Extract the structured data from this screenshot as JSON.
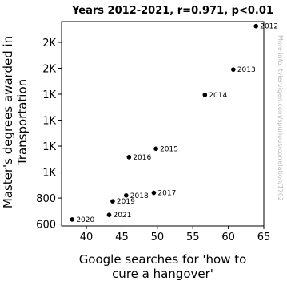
{
  "watermark": "More info: tylervigen.com/spurious/correlation/1762",
  "chart_data": {
    "type": "scatter",
    "title": "Years 2012-2021, r=0.971, p<0.01",
    "xlabel_lines": [
      "Google searches for 'how to",
      "cure a hangover'"
    ],
    "ylabel_lines": [
      "Master's degrees awarded in",
      "Transportation"
    ],
    "xlim": [
      36.5,
      65
    ],
    "ylim": [
      585,
      2160
    ],
    "x_ticks": [
      40,
      45,
      50,
      55,
      60,
      65
    ],
    "x_tick_labels": [
      "40",
      "45",
      "50",
      "55",
      "60",
      "65"
    ],
    "y_ticks": [
      600,
      800,
      1000,
      1200,
      1400,
      1600,
      1800,
      2000
    ],
    "y_tick_labels": [
      "600",
      "800",
      "1K",
      "1K",
      "1K",
      "1K",
      "2K",
      "2K"
    ],
    "points": [
      {
        "label": "2012",
        "x": 63.9,
        "y": 2125
      },
      {
        "label": "2013",
        "x": 60.7,
        "y": 1790
      },
      {
        "label": "2014",
        "x": 56.7,
        "y": 1595
      },
      {
        "label": "2015",
        "x": 49.8,
        "y": 1180
      },
      {
        "label": "2016",
        "x": 46.0,
        "y": 1115
      },
      {
        "label": "2017",
        "x": 49.5,
        "y": 840
      },
      {
        "label": "2018",
        "x": 45.6,
        "y": 820
      },
      {
        "label": "2019",
        "x": 43.7,
        "y": 775
      },
      {
        "label": "2020",
        "x": 38.0,
        "y": 635
      },
      {
        "label": "2021",
        "x": 43.2,
        "y": 670
      }
    ]
  }
}
